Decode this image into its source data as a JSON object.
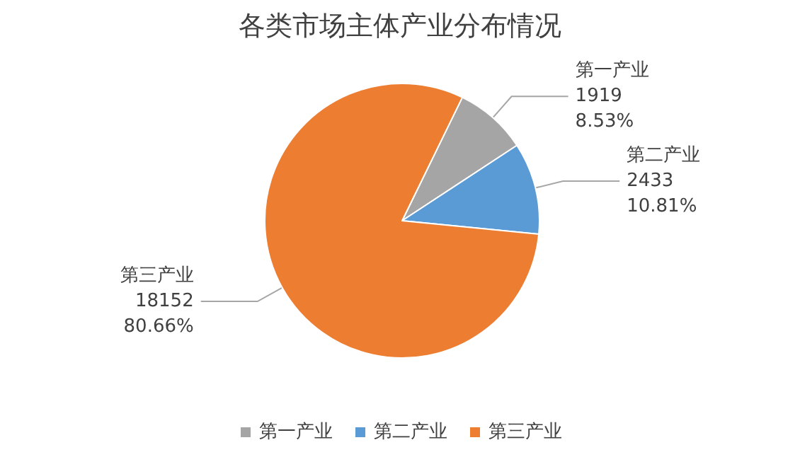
{
  "chart_data": {
    "type": "pie",
    "title": "各类市场主体产业分布情况",
    "categories": [
      "第一产业",
      "第二产业",
      "第三产业"
    ],
    "values": [
      1919,
      2433,
      18152
    ],
    "colors": [
      "#a5a5a5",
      "#5b9bd5",
      "#ed7d31"
    ],
    "value_labels": [
      "1919\n8.53%",
      "2433\n10.81%",
      "18152\n80.66%"
    ],
    "legend": "bottom"
  }
}
